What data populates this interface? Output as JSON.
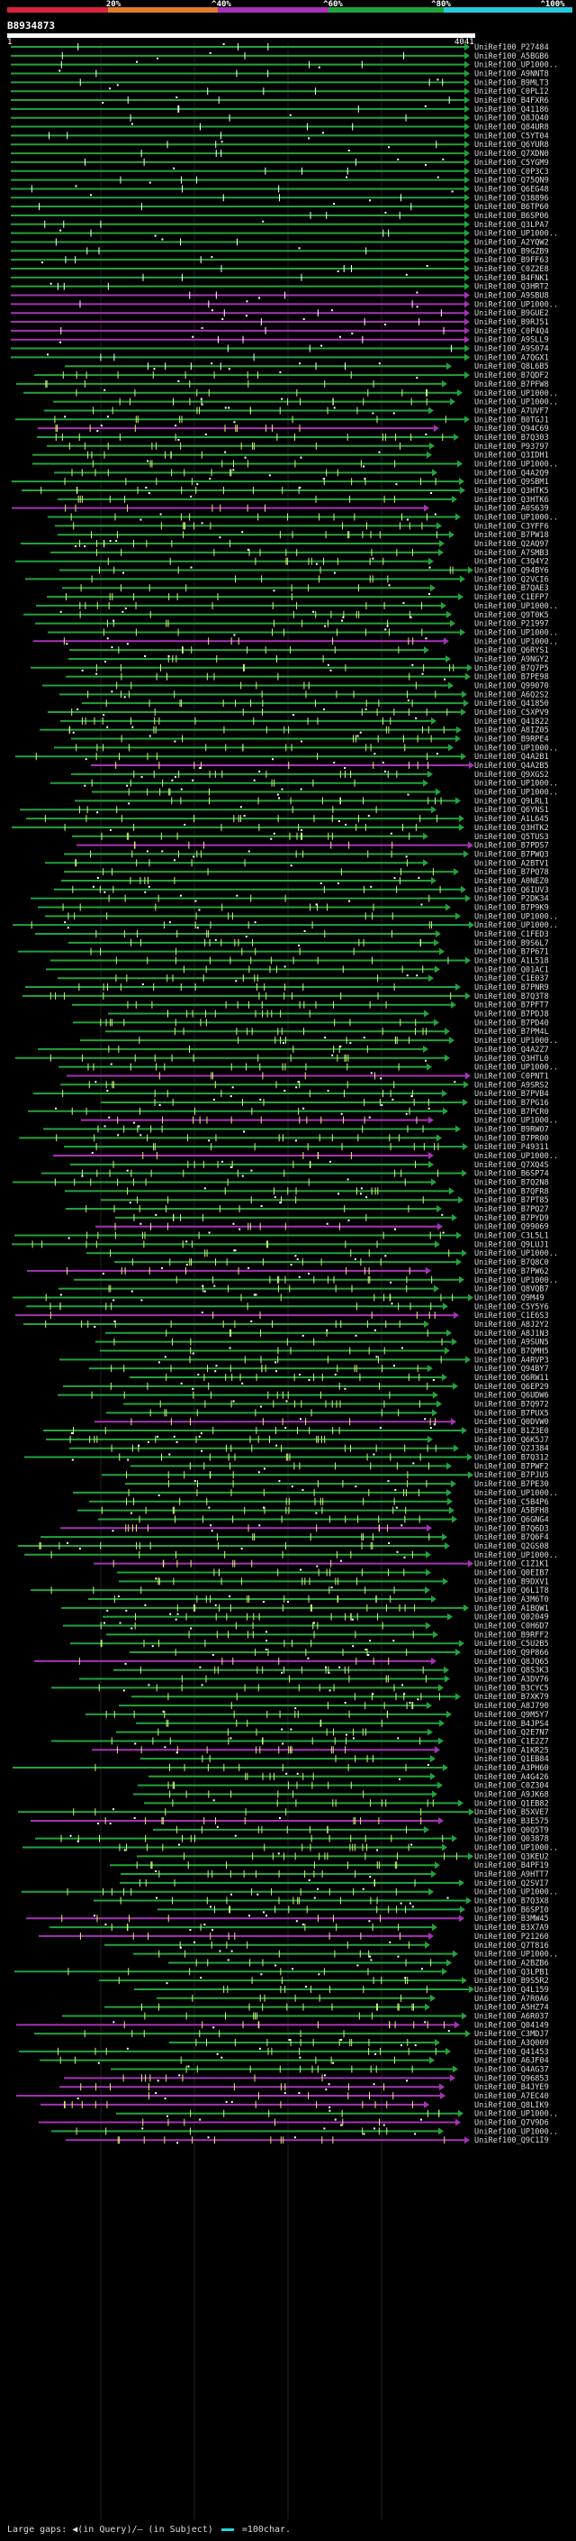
{
  "scale": {
    "labels": [
      "20%",
      "^40%",
      "^60%",
      "^80%",
      "^100%"
    ],
    "colors": [
      "#d8233b",
      "#e07b2a",
      "#a632b5",
      "#21a33c",
      "#24c9dc"
    ]
  },
  "query": {
    "id": "B8934873",
    "start": "1",
    "end": "4041"
  },
  "footer": {
    "text": "Large gaps: ◀(in Query)/– (in Subject)",
    "key_label": "=100char."
  },
  "hits": [
    {
      "name": "UniRef100_P27484",
      "tone": 0
    },
    {
      "name": "UniRef100_A5BGB6",
      "tone": 0
    },
    {
      "name": "UniRef100_UP1000..",
      "tone": 0
    },
    {
      "name": "UniRef100_A9NNT8",
      "tone": 0
    },
    {
      "name": "UniRef100_B9MLT3",
      "tone": 0
    },
    {
      "name": "UniRef100_C0PLI2",
      "tone": 0
    },
    {
      "name": "UniRef100_B4FXR6",
      "tone": 0
    },
    {
      "name": "UniRef100_Q41186",
      "tone": 0
    },
    {
      "name": "UniRef100_Q8JQ40",
      "tone": 0
    },
    {
      "name": "UniRef100_Q84UR8",
      "tone": 0
    },
    {
      "name": "UniRef100_C5YT04",
      "tone": 0
    },
    {
      "name": "UniRef100_Q6YUR8",
      "tone": 0
    },
    {
      "name": "UniRef100_Q7XDN0",
      "tone": 0
    },
    {
      "name": "UniRef100_C5YGM9",
      "tone": 0
    },
    {
      "name": "UniRef100_C0P3C3",
      "tone": 0
    },
    {
      "name": "UniRef100_Q75QN9",
      "tone": 0
    },
    {
      "name": "UniRef100_Q6EG48",
      "tone": 0
    },
    {
      "name": "UniRef100_Q38896",
      "tone": 0
    },
    {
      "name": "UniRef100_B6TP60",
      "tone": 0
    },
    {
      "name": "UniRef100_B6SP06",
      "tone": 0
    },
    {
      "name": "UniRef100_Q3LPA7",
      "tone": 0
    },
    {
      "name": "UniRef100_UP1000..",
      "tone": 0
    },
    {
      "name": "UniRef100_A2YQW2",
      "tone": 0
    },
    {
      "name": "UniRef100_B9GZB9",
      "tone": 0
    },
    {
      "name": "UniRef100_B9FF63",
      "tone": 0
    },
    {
      "name": "UniRef100_C0Z2E8",
      "tone": 0
    },
    {
      "name": "UniRef100_B4FNK1",
      "tone": 0
    },
    {
      "name": "UniRef100_Q3HRT2",
      "tone": 0
    },
    {
      "name": "UniRef100_A9SBU8",
      "tone": 1
    },
    {
      "name": "UniRef100_UP1000..",
      "tone": 1
    },
    {
      "name": "UniRef100_B9GUE2",
      "tone": 1
    },
    {
      "name": "UniRef100_B9RJ51",
      "tone": 1
    },
    {
      "name": "UniRef100_C0P4Q4",
      "tone": 1
    },
    {
      "name": "UniRef100_A9SLL9",
      "tone": 1
    },
    {
      "name": "UniRef100_A9S074",
      "tone": 0
    },
    {
      "name": "UniRef100_A7QGX1",
      "tone": 0
    },
    {
      "name": "UniRef100_Q8L6B5",
      "tone": 0
    },
    {
      "name": "UniRef100_B7QDF2",
      "tone": 0
    },
    {
      "name": "UniRef100_B7PFW8",
      "tone": 0
    },
    {
      "name": "UniRef100_UP1000..",
      "tone": 0
    },
    {
      "name": "UniRef100_UP1000..",
      "tone": 0
    },
    {
      "name": "UniRef100_A7UVF7",
      "tone": 0
    },
    {
      "name": "UniRef100_B0TGJ1",
      "tone": 0
    },
    {
      "name": "UniRef100_Q94C69",
      "tone": 1
    },
    {
      "name": "UniRef100_B7Q303",
      "tone": 0
    },
    {
      "name": "UniRef100_P93797",
      "tone": 0
    },
    {
      "name": "UniRef100_Q3IDH1",
      "tone": 0
    },
    {
      "name": "UniRef100_UP1000..",
      "tone": 0
    },
    {
      "name": "UniRef100_Q4A2Q9",
      "tone": 0
    },
    {
      "name": "UniRef100_Q9SBM1",
      "tone": 0
    },
    {
      "name": "UniRef100_Q3HTK5",
      "tone": 0
    },
    {
      "name": "UniRef100_Q3HTK6",
      "tone": 0
    },
    {
      "name": "UniRef100_A0S639",
      "tone": 1
    },
    {
      "name": "UniRef100_UP1000..",
      "tone": 0
    },
    {
      "name": "UniRef100_C3YFF6",
      "tone": 0
    },
    {
      "name": "UniRef100_B7PW18",
      "tone": 0
    },
    {
      "name": "UniRef100_Q2AQ97",
      "tone": 0
    },
    {
      "name": "UniRef100_A7SMB3",
      "tone": 0
    },
    {
      "name": "UniRef100_C3Q4Y2",
      "tone": 0
    },
    {
      "name": "UniRef100_Q94BY6",
      "tone": 0
    },
    {
      "name": "UniRef100_Q2VCI6",
      "tone": 0
    },
    {
      "name": "UniRef100_B7QAE3",
      "tone": 0
    },
    {
      "name": "UniRef100_C1EFP7",
      "tone": 0
    },
    {
      "name": "UniRef100_UP1000..",
      "tone": 0
    },
    {
      "name": "UniRef100_Q9T0K5",
      "tone": 0
    },
    {
      "name": "UniRef100_P21997",
      "tone": 0
    },
    {
      "name": "UniRef100_UP1000..",
      "tone": 0
    },
    {
      "name": "UniRef100_UP1000..",
      "tone": 1
    },
    {
      "name": "UniRef100_Q6RYS1",
      "tone": 0
    },
    {
      "name": "UniRef100_A9NGY2",
      "tone": 0
    },
    {
      "name": "UniRef100_B7Q7P5",
      "tone": 0
    },
    {
      "name": "UniRef100_B7PE98",
      "tone": 0
    },
    {
      "name": "UniRef100_Q99070",
      "tone": 0
    },
    {
      "name": "UniRef100_A6Q2S2",
      "tone": 0
    },
    {
      "name": "UniRef100_Q41850",
      "tone": 0
    },
    {
      "name": "UniRef100_C5XPV9",
      "tone": 0
    },
    {
      "name": "UniRef100_Q41822",
      "tone": 0
    },
    {
      "name": "UniRef100_A8IZ05",
      "tone": 0
    },
    {
      "name": "UniRef100_B9RPE4",
      "tone": 0
    },
    {
      "name": "UniRef100_UP1000..",
      "tone": 0
    },
    {
      "name": "UniRef100_Q4A2B1",
      "tone": 0
    },
    {
      "name": "UniRef100_Q4A2B5",
      "tone": 1
    },
    {
      "name": "UniRef100_Q9XGS2",
      "tone": 0
    },
    {
      "name": "UniRef100_UP1000..",
      "tone": 0
    },
    {
      "name": "UniRef100_UP1000..",
      "tone": 0
    },
    {
      "name": "UniRef100_Q9LRL1",
      "tone": 0
    },
    {
      "name": "UniRef100_Q6YNS1",
      "tone": 0
    },
    {
      "name": "UniRef100_A1L645",
      "tone": 0
    },
    {
      "name": "UniRef100_Q3HTK2",
      "tone": 0
    },
    {
      "name": "UniRef100_Q5TUS3",
      "tone": 0
    },
    {
      "name": "UniRef100_B7PDS7",
      "tone": 1
    },
    {
      "name": "UniRef100_B7PWQ3",
      "tone": 0
    },
    {
      "name": "UniRef100_A2BTV1",
      "tone": 0
    },
    {
      "name": "UniRef100_B7PQ78",
      "tone": 0
    },
    {
      "name": "UniRef100_A0NEZ0",
      "tone": 0
    },
    {
      "name": "UniRef100_Q6IUV3",
      "tone": 0
    },
    {
      "name": "UniRef100_P2DK34",
      "tone": 0
    },
    {
      "name": "UniRef100_B7P9K9",
      "tone": 0
    },
    {
      "name": "UniRef100_UP1000..",
      "tone": 0
    },
    {
      "name": "UniRef100_UP1000..",
      "tone": 0
    },
    {
      "name": "UniRef100_C1FED3",
      "tone": 0
    },
    {
      "name": "UniRef100_B9S6L7",
      "tone": 0
    },
    {
      "name": "UniRef100_B7P671",
      "tone": 0
    },
    {
      "name": "UniRef100_A1L518",
      "tone": 0
    },
    {
      "name": "UniRef100_Q01AC1",
      "tone": 0
    },
    {
      "name": "UniRef100_C1E037",
      "tone": 0
    },
    {
      "name": "UniRef100_B7PNR9",
      "tone": 0
    },
    {
      "name": "UniRef100_B7Q3T8",
      "tone": 0
    },
    {
      "name": "UniRef100_B7PFT7",
      "tone": 0
    },
    {
      "name": "UniRef100_B7PDJ8",
      "tone": 0
    },
    {
      "name": "UniRef100_B7PD40",
      "tone": 0
    },
    {
      "name": "UniRef100_B7PM4L",
      "tone": 0
    },
    {
      "name": "UniRef100_UP1000..",
      "tone": 0
    },
    {
      "name": "UniRef100_Q4A2Z7",
      "tone": 0
    },
    {
      "name": "UniRef100_Q3HTL0",
      "tone": 0
    },
    {
      "name": "UniRef100_UP1000..",
      "tone": 0
    },
    {
      "name": "UniRef100_C0PNT1",
      "tone": 1
    },
    {
      "name": "UniRef100_A9SRS2",
      "tone": 0
    },
    {
      "name": "UniRef100_B7PVB4",
      "tone": 0
    },
    {
      "name": "UniRef100_B7PG16",
      "tone": 0
    },
    {
      "name": "UniRef100_B7PCR0",
      "tone": 0
    },
    {
      "name": "UniRef100_UP1000..",
      "tone": 1
    },
    {
      "name": "UniRef100_B9RWO7",
      "tone": 0
    },
    {
      "name": "UniRef100_B7PR00",
      "tone": 0
    },
    {
      "name": "UniRef100_P49311",
      "tone": 0
    },
    {
      "name": "UniRef100_UP1000..",
      "tone": 1
    },
    {
      "name": "UniRef100_Q7XQ4S",
      "tone": 0
    },
    {
      "name": "UniRef100_B6SP74",
      "tone": 0
    },
    {
      "name": "UniRef100_B7Q2N8",
      "tone": 0
    },
    {
      "name": "UniRef100_B7QFR8",
      "tone": 0
    },
    {
      "name": "UniRef100_B7PT85",
      "tone": 0
    },
    {
      "name": "UniRef100_B7PQ27",
      "tone": 0
    },
    {
      "name": "UniRef100_B7PYD9",
      "tone": 0
    },
    {
      "name": "UniRef100_Q99069",
      "tone": 1
    },
    {
      "name": "UniRef100_C3L5L1",
      "tone": 0
    },
    {
      "name": "UniRef100_Q9LUJ1",
      "tone": 0
    },
    {
      "name": "UniRef100_UP1000..",
      "tone": 0
    },
    {
      "name": "UniRef100_B7Q8C0",
      "tone": 0
    },
    {
      "name": "UniRef100_B7PW62",
      "tone": 1
    },
    {
      "name": "UniRef100_UP1000..",
      "tone": 0
    },
    {
      "name": "UniRef100_Q8VQB7",
      "tone": 0
    },
    {
      "name": "UniRef100_Q9M49",
      "tone": 0
    },
    {
      "name": "UniRef100_C5Y5Y6",
      "tone": 0
    },
    {
      "name": "UniRef100_C1E6S3",
      "tone": 1
    },
    {
      "name": "UniRef100_A8J2Y2",
      "tone": 0
    },
    {
      "name": "UniRef100_A8J1N3",
      "tone": 0
    },
    {
      "name": "UniRef100_A9SUN5",
      "tone": 0
    },
    {
      "name": "UniRef100_B7QMH5",
      "tone": 0
    },
    {
      "name": "UniRef100_A4RVP3",
      "tone": 0
    },
    {
      "name": "UniRef100_Q94BY7",
      "tone": 0
    },
    {
      "name": "UniRef100_Q6RW11",
      "tone": 0
    },
    {
      "name": "UniRef100_Q6EP29",
      "tone": 0
    },
    {
      "name": "UniRef100_Q6UDW6",
      "tone": 0
    },
    {
      "name": "UniRef100_B7Q972",
      "tone": 0
    },
    {
      "name": "UniRef100_B7PUX5",
      "tone": 0
    },
    {
      "name": "UniRef100_Q0DVW0",
      "tone": 1
    },
    {
      "name": "UniRef100_B1Z3E0",
      "tone": 0
    },
    {
      "name": "UniRef100_Q6K5J7",
      "tone": 0
    },
    {
      "name": "UniRef100_Q2J384",
      "tone": 0
    },
    {
      "name": "UniRef100_B7Q312",
      "tone": 0
    },
    {
      "name": "UniRef100_B7PWF2",
      "tone": 0
    },
    {
      "name": "UniRef100_B7PJU5",
      "tone": 0
    },
    {
      "name": "UniRef100_B7PE30",
      "tone": 0
    },
    {
      "name": "UniRef100_UP1000..",
      "tone": 0
    },
    {
      "name": "UniRef100_C5B4P6",
      "tone": 0
    },
    {
      "name": "UniRef100_A5BFH8",
      "tone": 0
    },
    {
      "name": "UniRef100_Q6GNG4",
      "tone": 0
    },
    {
      "name": "UniRef100_B7Q6D3",
      "tone": 1
    },
    {
      "name": "UniRef100_B7Q6F4",
      "tone": 0
    },
    {
      "name": "UniRef100_Q2GS08",
      "tone": 0
    },
    {
      "name": "UniRef100_UP1000..",
      "tone": 0
    },
    {
      "name": "UniRef100_C1Z1K1",
      "tone": 1
    },
    {
      "name": "UniRef100_Q0EIB7",
      "tone": 0
    },
    {
      "name": "UniRef100_B9DXV1",
      "tone": 0
    },
    {
      "name": "UniRef100_Q6L1T8",
      "tone": 0
    },
    {
      "name": "UniRef100_A3M6T0",
      "tone": 0
    },
    {
      "name": "UniRef100_A1BQW1",
      "tone": 0
    },
    {
      "name": "UniRef100_Q02049",
      "tone": 0
    },
    {
      "name": "UniRef100_C0H6D7",
      "tone": 0
    },
    {
      "name": "UniRef100_B9RFF2",
      "tone": 0
    },
    {
      "name": "UniRef100_C5U2B5",
      "tone": 0
    },
    {
      "name": "UniRef100_Q9P866",
      "tone": 0
    },
    {
      "name": "UniRef100_Q8JQ65",
      "tone": 1
    },
    {
      "name": "UniRef100_Q8S3K3",
      "tone": 0
    },
    {
      "name": "UniRef100_A3DV76",
      "tone": 0
    },
    {
      "name": "UniRef100_B3CYC5",
      "tone": 0
    },
    {
      "name": "UniRef100_B7XK79",
      "tone": 0
    },
    {
      "name": "UniRef100_A8J790",
      "tone": 0
    },
    {
      "name": "UniRef100_Q9M5Y7",
      "tone": 0
    },
    {
      "name": "UniRef100_B4JPS4",
      "tone": 0
    },
    {
      "name": "UniRef100_Q2E7N7",
      "tone": 0
    },
    {
      "name": "UniRef100_C1E2Z7",
      "tone": 0
    },
    {
      "name": "UniRef100_A1KR25",
      "tone": 1
    },
    {
      "name": "UniRef100_Q1EB84",
      "tone": 0
    },
    {
      "name": "UniRef100_A3PH60",
      "tone": 0
    },
    {
      "name": "UniRef100_A4G426",
      "tone": 0
    },
    {
      "name": "UniRef100_C0Z304",
      "tone": 0
    },
    {
      "name": "UniRef100_A9JK68",
      "tone": 0
    },
    {
      "name": "UniRef100_Q1EB82",
      "tone": 0
    },
    {
      "name": "UniRef100_B5XVE7",
      "tone": 0
    },
    {
      "name": "UniRef100_B3E575",
      "tone": 1
    },
    {
      "name": "UniRef100_Q0Q5T9",
      "tone": 0
    },
    {
      "name": "UniRef100_Q03878",
      "tone": 0
    },
    {
      "name": "UniRef100_UP1000..",
      "tone": 0
    },
    {
      "name": "UniRef100_Q3KEU2",
      "tone": 0
    },
    {
      "name": "UniRef100_B4PF19",
      "tone": 0
    },
    {
      "name": "UniRef100_A9HTT7",
      "tone": 0
    },
    {
      "name": "UniRef100_Q2SVI7",
      "tone": 0
    },
    {
      "name": "UniRef100_UP1000..",
      "tone": 0
    },
    {
      "name": "UniRef100_B7Q3X8",
      "tone": 0
    },
    {
      "name": "UniRef100_B6SPI0",
      "tone": 0
    },
    {
      "name": "UniRef100_B3MW45",
      "tone": 1
    },
    {
      "name": "UniRef100_B3X7A9",
      "tone": 0
    },
    {
      "name": "UniRef100_P21260",
      "tone": 1
    },
    {
      "name": "UniRef100_Q7T816",
      "tone": 0
    },
    {
      "name": "UniRef100_UP1000..",
      "tone": 0
    },
    {
      "name": "UniRef100_A2BZB6",
      "tone": 0
    },
    {
      "name": "UniRef100_Q3LPB1",
      "tone": 0
    },
    {
      "name": "UniRef100_B9S5R2",
      "tone": 0
    },
    {
      "name": "UniRef100_Q4L159",
      "tone": 0
    },
    {
      "name": "UniRef100_A7R0A6",
      "tone": 0
    },
    {
      "name": "UniRef100_A5HZ74",
      "tone": 0
    },
    {
      "name": "UniRef100_A6R037",
      "tone": 0
    },
    {
      "name": "UniRef100_Q04149",
      "tone": 1
    },
    {
      "name": "UniRef100_C3MDJ7",
      "tone": 0
    },
    {
      "name": "UniRef100_A3Q009",
      "tone": 0
    },
    {
      "name": "UniRef100_Q41453",
      "tone": 0
    },
    {
      "name": "UniRef100_A6JF04",
      "tone": 0
    },
    {
      "name": "UniRef100_Q4AG37",
      "tone": 0
    },
    {
      "name": "UniRef100_Q96853",
      "tone": 1
    },
    {
      "name": "UniRef100_B4JYE9",
      "tone": 1
    },
    {
      "name": "UniRef100_A7EC40",
      "tone": 1
    },
    {
      "name": "UniRef100_Q8LIK9",
      "tone": 1
    },
    {
      "name": "UniRef100_UP1000..",
      "tone": 0
    },
    {
      "name": "UniRef100_Q7V9D6",
      "tone": 1
    },
    {
      "name": "UniRef100_UP1000..",
      "tone": 0
    },
    {
      "name": "UniRef100_Q9C1I9",
      "tone": 1
    }
  ]
}
